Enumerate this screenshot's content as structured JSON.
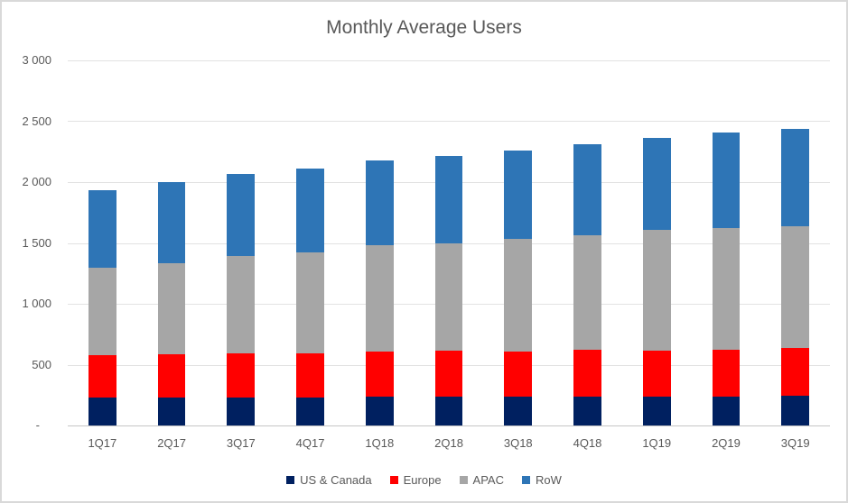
{
  "chart_data": {
    "type": "bar",
    "stacked": true,
    "title": "Monthly Average Users",
    "xlabel": "",
    "ylabel": "",
    "categories": [
      "1Q17",
      "2Q17",
      "3Q17",
      "4Q17",
      "1Q18",
      "2Q18",
      "3Q18",
      "4Q18",
      "1Q19",
      "2Q19",
      "3Q19"
    ],
    "series": [
      {
        "name": "US & Canada",
        "color": "#002060",
        "values": [
          230,
          230,
          230,
          230,
          235,
          235,
          235,
          240,
          235,
          240,
          245
        ]
      },
      {
        "name": "Europe",
        "color": "#FF0000",
        "values": [
          345,
          355,
          360,
          360,
          375,
          380,
          375,
          380,
          380,
          380,
          390
        ]
      },
      {
        "name": "APAC",
        "color": "#A6A6A6",
        "values": [
          725,
          750,
          805,
          835,
          875,
          885,
          920,
          940,
          990,
          1005,
          1005
        ]
      },
      {
        "name": "RoW",
        "color": "#2E75B6",
        "values": [
          630,
          665,
          675,
          690,
          690,
          715,
          730,
          750,
          760,
          780,
          800
        ]
      }
    ],
    "totals": [
      1930,
      2000,
      2070,
      2115,
      2175,
      2215,
      2260,
      2310,
      2365,
      2405,
      2440
    ],
    "ylim": [
      0,
      3000
    ],
    "y_ticks": [
      {
        "value": 0,
        "label": "-"
      },
      {
        "value": 500,
        "label": "500"
      },
      {
        "value": 1000,
        "label": "1 000"
      },
      {
        "value": 1500,
        "label": "1 500"
      },
      {
        "value": 2000,
        "label": "2 000"
      },
      {
        "value": 2500,
        "label": "2 500"
      },
      {
        "value": 3000,
        "label": "3 000"
      }
    ],
    "grid": true,
    "legend_position": "bottom",
    "colors": {
      "gridline": "#E2E2E2",
      "axis_line": "#C6C6C6",
      "text": "#595959",
      "border": "#D9D9D9"
    }
  }
}
